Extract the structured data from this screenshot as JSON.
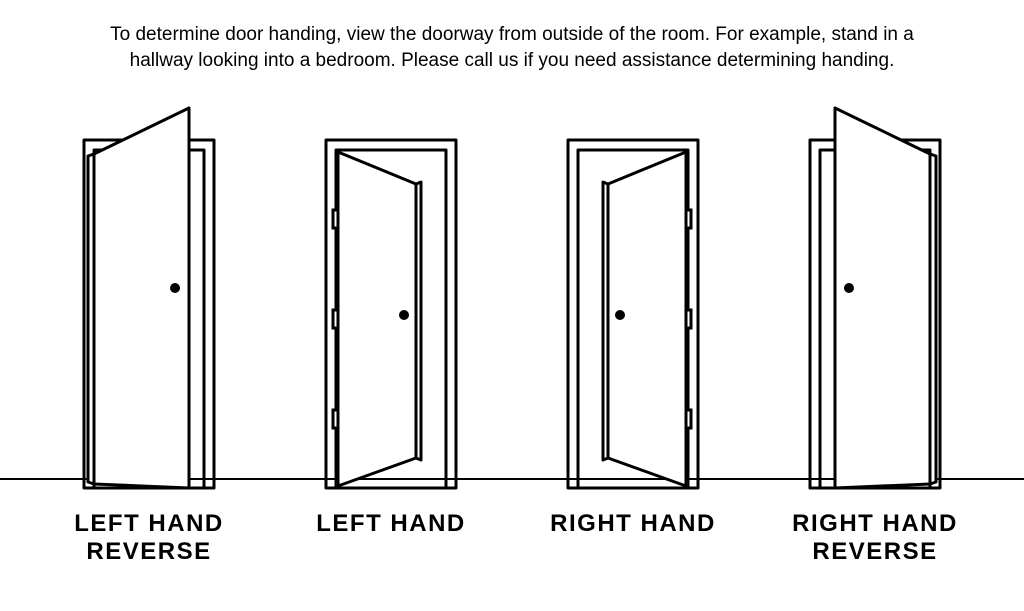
{
  "instruction_text": "To determine door handing, view the doorway from outside of the room. For example, stand in a hallway looking into a bedroom. Please call us if you need assistance determining handing.",
  "doors": [
    {
      "label": "LEFT HAND REVERSE",
      "type": "lh_reverse",
      "hinge_side": "left",
      "swing": "out"
    },
    {
      "label": "LEFT HAND",
      "type": "lh",
      "hinge_side": "left",
      "swing": "in"
    },
    {
      "label": "RIGHT HAND",
      "type": "rh",
      "hinge_side": "right",
      "swing": "in"
    },
    {
      "label": "RIGHT HAND REVERSE",
      "type": "rh_reverse",
      "hinge_side": "right",
      "swing": "out"
    }
  ],
  "style": {
    "background_color": "#ffffff",
    "stroke_color": "#000000",
    "fill_color": "#ffffff",
    "stroke_width": 3,
    "knob_radius": 5,
    "instruction_fontsize": 19,
    "label_fontsize": 24,
    "label_letter_spacing": 1.5,
    "label_font_family": "Impact, Arial Black, sans-serif",
    "door_cell_width": 200,
    "door_svg_height": 390,
    "gap": 42
  }
}
